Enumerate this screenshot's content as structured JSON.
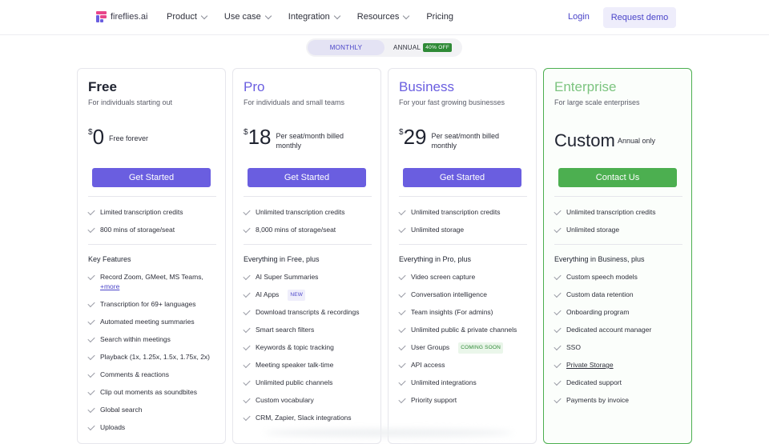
{
  "brand": {
    "name": "fireflies.ai"
  },
  "nav": {
    "items": [
      "Product",
      "Use case",
      "Integration",
      "Resources",
      "Pricing"
    ],
    "login": "Login",
    "demo": "Request demo"
  },
  "billing": {
    "monthly": "MONTHLY",
    "annual": "ANNUAL",
    "discount": "40% OFF"
  },
  "plans": [
    {
      "name": "Free",
      "subtitle": "For individuals starting out",
      "currency": "$",
      "price": "0",
      "price_note": "Free forever",
      "cta": "Get Started",
      "cta_color": "#6a5ee0",
      "limits": [
        "Limited transcription credits",
        "800 mins of storage/seat"
      ],
      "section": "Key Features",
      "features": [
        "Record Zoom, GMeet, MS Teams,",
        "Transcription for 69+ languages",
        "Automated meeting summaries",
        "Search within meetings",
        "Playback (1x, 1.25x, 1.5x, 1.75x, 2x)",
        "Comments & reactions",
        "Clip out moments as soundbites",
        "Global search",
        "Uploads"
      ],
      "more_link": "+more"
    },
    {
      "name": "Pro",
      "subtitle": "For individuals and small teams",
      "currency": "$",
      "price": "18",
      "price_note": "Per seat/month billed monthly",
      "cta": "Get Started",
      "cta_color": "#6a5ee0",
      "limits": [
        "Unlimited transcription credits",
        "8,000 mins of storage/seat"
      ],
      "section": "Everything in Free, plus",
      "features": [
        "AI Super Summaries",
        "AI Apps",
        "Download transcripts & recordings",
        "Smart search filters",
        "Keywords & topic tracking",
        "Meeting speaker talk-time",
        "Unlimited public channels",
        "Custom vocabulary",
        "CRM, Zapier, Slack integrations"
      ],
      "badge_new": "NEW"
    },
    {
      "name": "Business",
      "subtitle": "For your fast growing businesses",
      "currency": "$",
      "price": "29",
      "price_note": "Per seat/month billed monthly",
      "cta": "Get Started",
      "cta_color": "#6a5ee0",
      "limits": [
        "Unlimited transcription credits",
        "Unlimited storage"
      ],
      "section": "Everything in Pro, plus",
      "features": [
        "Video screen capture",
        "Conversation intelligence",
        "Team insights (For admins)",
        "Unlimited public & private channels",
        "User Groups",
        "API access",
        "Unlimited integrations",
        "Priority support"
      ],
      "badge_soon": "COMING SOON"
    },
    {
      "name": "Enterprise",
      "subtitle": "For large scale enterprises",
      "price": "Custom",
      "price_note": "Annual only",
      "cta": "Contact Us",
      "cta_color": "#4caf50",
      "limits": [
        "Unlimited transcription credits",
        "Unlimited storage"
      ],
      "section": "Everything in Business, plus",
      "features": [
        "Custom speech models",
        "Custom data retention",
        "Onboarding program",
        "Dedicated account manager",
        "SSO",
        "Private Storage",
        "Dedicated support",
        "Payments by invoice"
      ]
    }
  ],
  "colors": {
    "accent": "#4b45c9",
    "primary_button": "#6a5ee0",
    "enterprise": "#4caf50",
    "pro_name": "#6a5ee0",
    "business_name": "#6a5ee0",
    "enterprise_name": "#7cc47f"
  }
}
